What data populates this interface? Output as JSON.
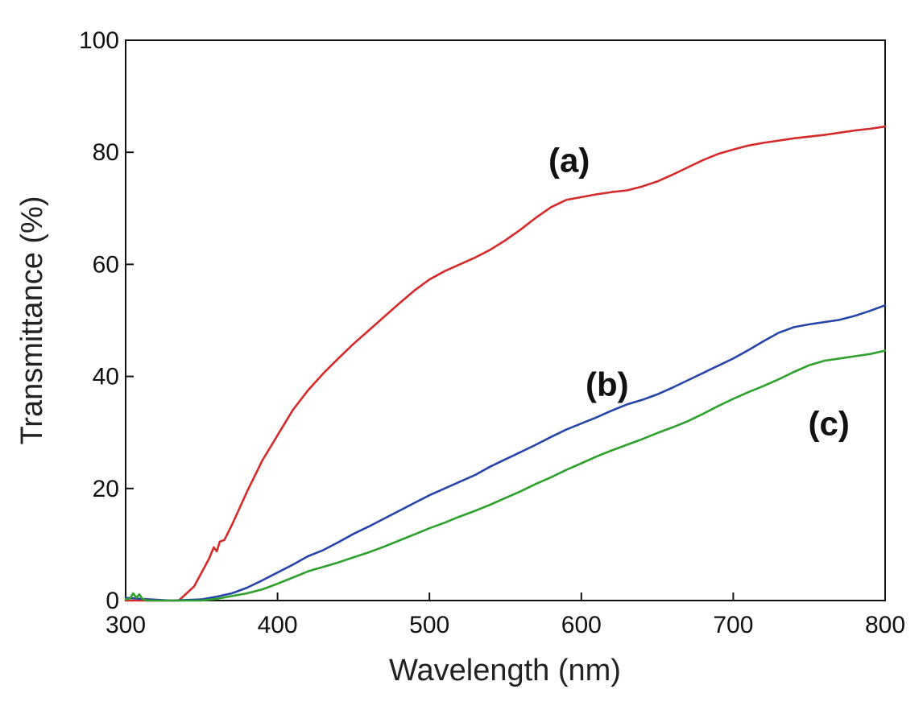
{
  "chart_data": {
    "type": "line",
    "title": "",
    "xlabel": "Wavelength (nm)",
    "ylabel": "Transmittance (%)",
    "xlim": [
      300,
      800
    ],
    "ylim": [
      0,
      100
    ],
    "xticks": [
      300,
      400,
      500,
      600,
      700,
      800
    ],
    "yticks": [
      0,
      20,
      40,
      60,
      80,
      100
    ],
    "x_tick_labels": [
      "300",
      "400",
      "500",
      "600",
      "700",
      "800"
    ],
    "y_tick_labels": [
      "0",
      "20",
      "40",
      "60",
      "80",
      "100"
    ],
    "grid": false,
    "legend": "none",
    "series": [
      {
        "label": "(a)",
        "color": "#d42a2a",
        "x": [
          300,
          305,
          310,
          320,
          335,
          345,
          350,
          355,
          358,
          360,
          362,
          365,
          370,
          380,
          390,
          400,
          410,
          420,
          430,
          440,
          450,
          460,
          470,
          480,
          490,
          500,
          510,
          520,
          530,
          540,
          550,
          560,
          570,
          580,
          590,
          600,
          610,
          620,
          630,
          640,
          650,
          660,
          670,
          680,
          690,
          700,
          710,
          720,
          730,
          740,
          750,
          760,
          770,
          780,
          790,
          800
        ],
        "values": [
          0.0,
          0.0,
          0.0,
          0.0,
          0.0,
          2.5,
          5.0,
          7.5,
          9.5,
          8.8,
          10.5,
          10.8,
          13.5,
          19.5,
          25.0,
          29.5,
          34.0,
          37.5,
          40.5,
          43.2,
          45.8,
          48.2,
          50.6,
          53.0,
          55.3,
          57.3,
          58.8,
          60.0,
          61.2,
          62.6,
          64.3,
          66.2,
          68.3,
          70.2,
          71.5,
          72.0,
          72.5,
          72.9,
          73.2,
          73.9,
          74.8,
          76.0,
          77.3,
          78.6,
          79.7,
          80.5,
          81.2,
          81.7,
          82.1,
          82.5,
          82.8,
          83.1,
          83.5,
          83.9,
          84.2,
          84.6
        ]
      },
      {
        "label": "(b)",
        "color": "#2744a8",
        "x": [
          300,
          310,
          330,
          350,
          360,
          370,
          380,
          390,
          400,
          410,
          420,
          430,
          440,
          450,
          460,
          470,
          480,
          490,
          500,
          510,
          520,
          530,
          540,
          550,
          560,
          570,
          580,
          590,
          600,
          610,
          620,
          630,
          640,
          650,
          660,
          670,
          680,
          690,
          700,
          710,
          720,
          730,
          740,
          750,
          760,
          770,
          780,
          790,
          800
        ],
        "values": [
          0.5,
          0.3,
          0.0,
          0.2,
          0.7,
          1.3,
          2.3,
          3.6,
          5.0,
          6.4,
          7.9,
          9.0,
          10.4,
          11.9,
          13.2,
          14.6,
          16.0,
          17.4,
          18.8,
          20.0,
          21.2,
          22.4,
          23.9,
          25.2,
          26.5,
          27.8,
          29.2,
          30.5,
          31.6,
          32.7,
          33.9,
          35.0,
          35.8,
          36.8,
          38.0,
          39.3,
          40.6,
          41.9,
          43.2,
          44.7,
          46.3,
          47.8,
          48.8,
          49.3,
          49.7,
          50.1,
          50.8,
          51.7,
          52.7
        ]
      },
      {
        "label": "(c)",
        "color": "#2ea02e",
        "x": [
          300,
          303,
          305,
          307,
          309,
          311,
          313,
          315,
          330,
          350,
          360,
          370,
          380,
          390,
          400,
          410,
          420,
          430,
          440,
          450,
          460,
          470,
          480,
          490,
          500,
          510,
          520,
          530,
          540,
          550,
          560,
          570,
          580,
          590,
          600,
          610,
          620,
          630,
          640,
          650,
          660,
          670,
          680,
          690,
          700,
          710,
          720,
          730,
          740,
          750,
          760,
          770,
          780,
          790,
          800
        ],
        "values": [
          0.2,
          0.4,
          1.3,
          0.5,
          1.1,
          0.3,
          0.1,
          0.0,
          0.0,
          0.0,
          0.3,
          0.8,
          1.3,
          2.0,
          3.0,
          4.1,
          5.2,
          6.0,
          6.8,
          7.7,
          8.6,
          9.6,
          10.7,
          11.8,
          12.9,
          13.9,
          15.0,
          16.0,
          17.1,
          18.3,
          19.5,
          20.8,
          22.0,
          23.3,
          24.5,
          25.7,
          26.8,
          27.8,
          28.8,
          29.9,
          30.9,
          32.0,
          33.3,
          34.7,
          36.0,
          37.2,
          38.3,
          39.5,
          40.8,
          42.0,
          42.8,
          43.2,
          43.6,
          44.0,
          44.6
        ]
      }
    ],
    "annotations": [
      {
        "text": "(a)",
        "x": 592,
        "y": 76.5
      },
      {
        "text": "(b)",
        "x": 617,
        "y": 36.5
      },
      {
        "text": "(c)",
        "x": 763,
        "y": 29.5
      }
    ]
  }
}
